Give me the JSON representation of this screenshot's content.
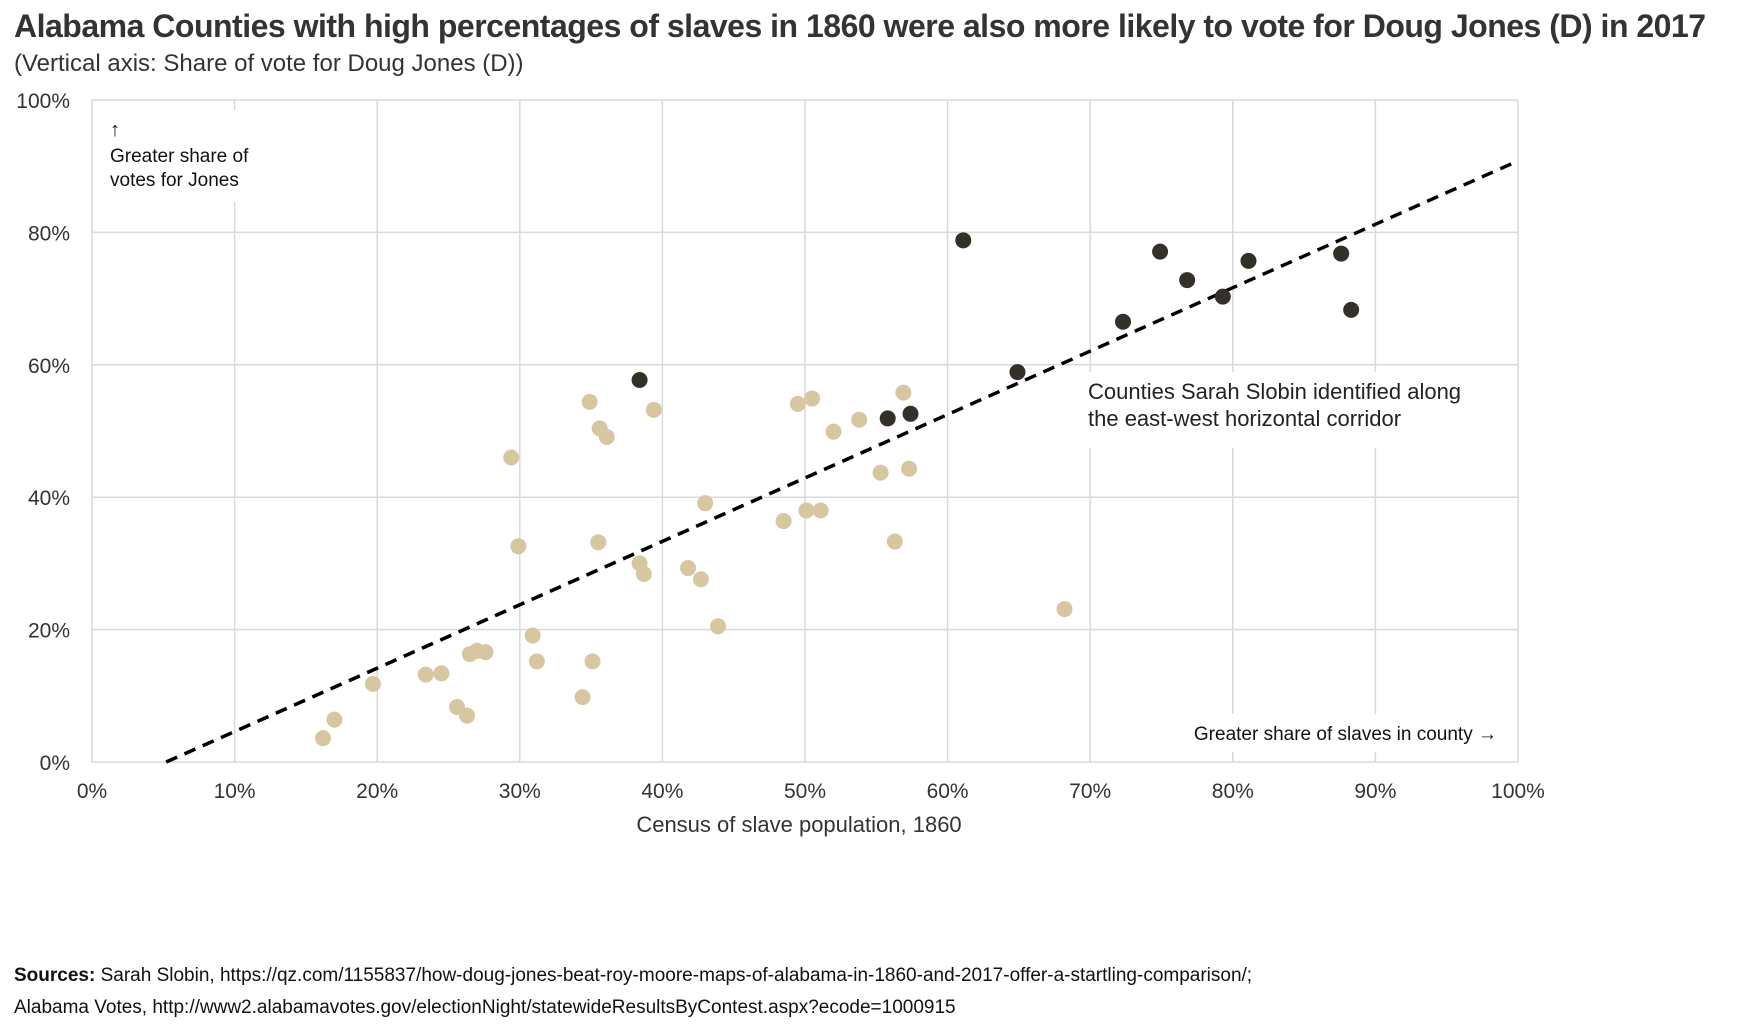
{
  "chart_data": {
    "type": "scatter",
    "title": "Alabama Counties with high percentages of slaves in 1860 were also more likely to vote for Doug Jones (D) in 2017",
    "subtitle": "(Vertical axis: Share of vote for Doug Jones (D))",
    "xlabel": "Census of slave population, 1860",
    "ylabel": "",
    "xlim": [
      0,
      100
    ],
    "ylim": [
      0,
      100
    ],
    "x_ticks": [
      0,
      10,
      20,
      30,
      40,
      50,
      60,
      70,
      80,
      90,
      100
    ],
    "x_tick_labels": [
      "0%",
      "10%",
      "20%",
      "30%",
      "40%",
      "50%",
      "60%",
      "70%",
      "80%",
      "90%",
      "100%"
    ],
    "y_ticks": [
      0,
      20,
      40,
      60,
      80,
      100
    ],
    "y_tick_labels": [
      "0%",
      "20%",
      "40%",
      "60%",
      "80%",
      "100%"
    ],
    "grid": true,
    "series": [
      {
        "color": "#d6c7a1",
        "points": [
          [
            16.2,
            3.6
          ],
          [
            17.0,
            6.4
          ],
          [
            19.7,
            11.8
          ],
          [
            23.4,
            13.2
          ],
          [
            24.5,
            13.4
          ],
          [
            25.6,
            8.3
          ],
          [
            26.3,
            7.0
          ],
          [
            26.5,
            16.3
          ],
          [
            27.0,
            16.8
          ],
          [
            27.6,
            16.6
          ],
          [
            29.4,
            46.0
          ],
          [
            29.9,
            32.6
          ],
          [
            30.9,
            19.1
          ],
          [
            31.2,
            15.2
          ],
          [
            34.4,
            9.8
          ],
          [
            34.9,
            54.4
          ],
          [
            35.1,
            15.2
          ],
          [
            35.5,
            33.2
          ],
          [
            35.6,
            50.4
          ],
          [
            36.1,
            49.1
          ],
          [
            38.4,
            30.0
          ],
          [
            38.7,
            28.4
          ],
          [
            39.4,
            53.2
          ],
          [
            41.8,
            29.3
          ],
          [
            42.7,
            27.6
          ],
          [
            43.0,
            39.1
          ],
          [
            43.9,
            20.5
          ],
          [
            48.5,
            36.4
          ],
          [
            49.5,
            54.1
          ],
          [
            50.1,
            38.0
          ],
          [
            50.5,
            54.9
          ],
          [
            51.1,
            38.0
          ],
          [
            52.0,
            49.9
          ],
          [
            53.8,
            51.7
          ],
          [
            55.3,
            43.7
          ],
          [
            56.3,
            33.3
          ],
          [
            56.9,
            55.8
          ],
          [
            57.3,
            44.3
          ],
          [
            68.2,
            23.1
          ]
        ]
      },
      {
        "name": "Counties Sarah Slobin identified along the east-west  horizontal corridor",
        "color": "#323029",
        "points": [
          [
            38.4,
            57.7
          ],
          [
            55.8,
            51.9
          ],
          [
            57.4,
            52.6
          ],
          [
            61.1,
            78.8
          ],
          [
            64.9,
            58.9
          ],
          [
            72.3,
            66.5
          ],
          [
            74.9,
            77.1
          ],
          [
            76.8,
            72.8
          ],
          [
            79.3,
            70.3
          ],
          [
            81.1,
            75.7
          ],
          [
            87.6,
            76.8
          ],
          [
            88.3,
            68.3
          ]
        ]
      }
    ],
    "trendline": {
      "style": "dashed",
      "color": "#000000",
      "points": [
        [
          5.2,
          0
        ],
        [
          100,
          90.8
        ]
      ]
    },
    "annotations": {
      "up_arrow": "↑",
      "top_left_line1": "Greater share of",
      "top_left_line2": "votes for Jones",
      "corridor_line1": "Counties Sarah Slobin identified along",
      "corridor_line2": "the east-west  horizontal corridor",
      "bottom_right": "Greater share of slaves in county →"
    }
  },
  "footer": {
    "sources_label": "Sources:",
    "line1": " Sarah Slobin, https://qz.com/1155837/how-doug-jones-beat-roy-moore-maps-of-alabama-in-1860-and-2017-offer-a-startling-comparison/;",
    "line2": "Alabama Votes, http://www2.alabamavotes.gov/electionNight/statewideResultsByContest.aspx?ecode=1000915"
  }
}
